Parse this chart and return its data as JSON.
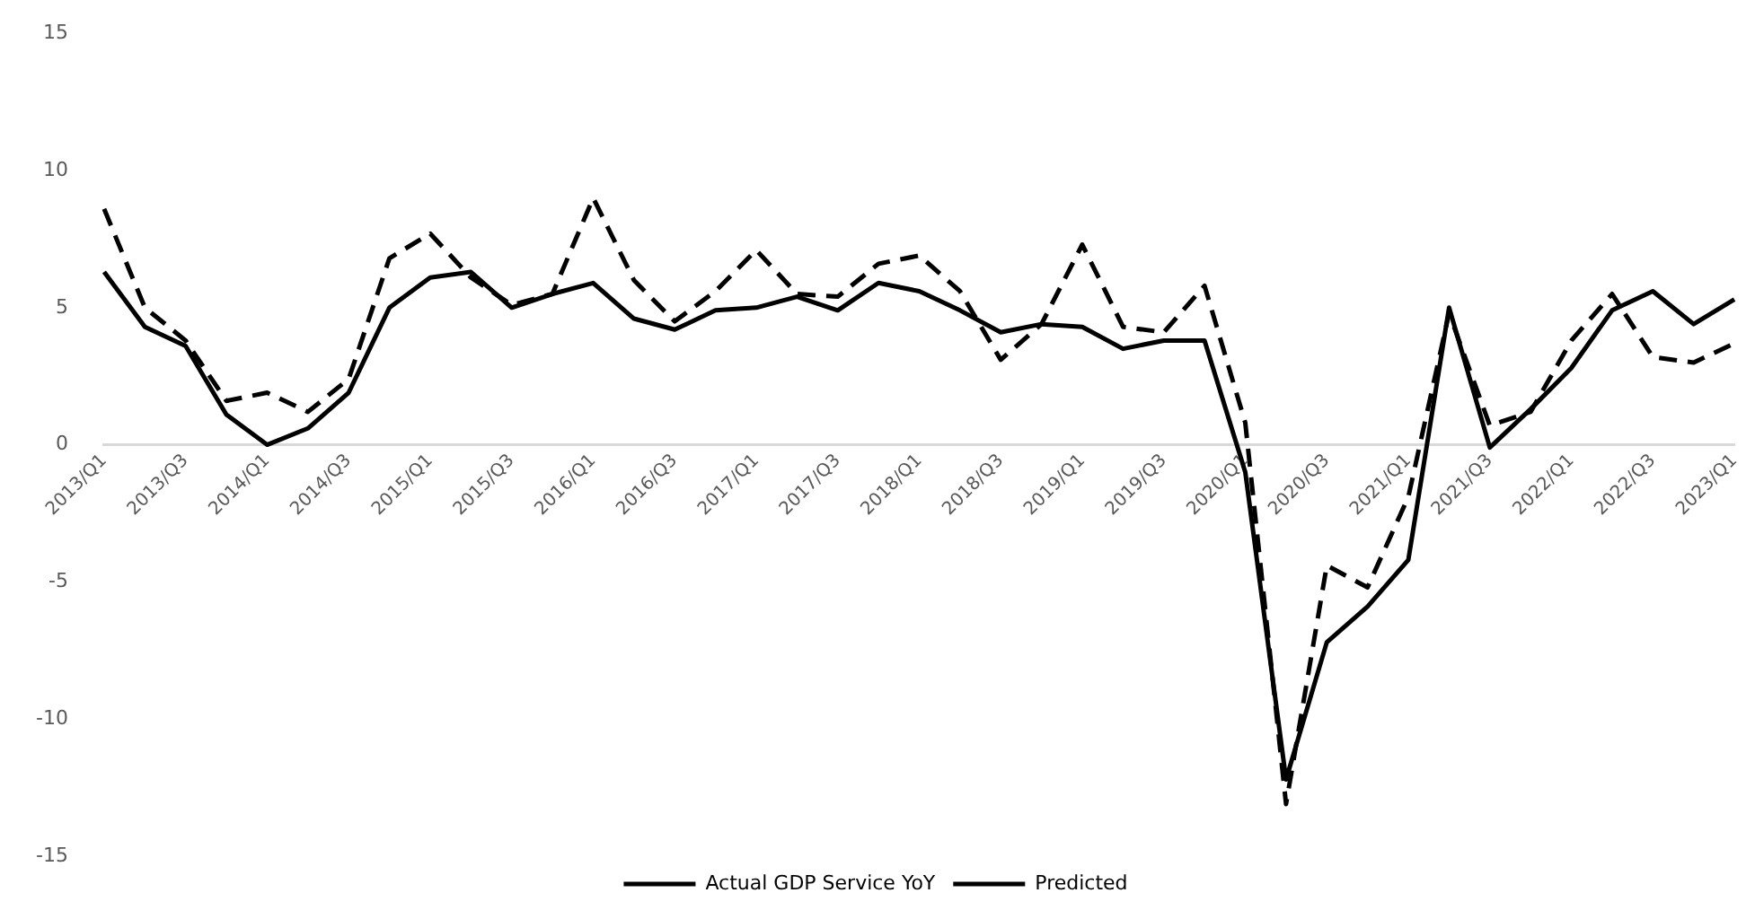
{
  "chart_data": {
    "type": "line",
    "categories": [
      "2013/Q1",
      null,
      "2013/Q3",
      null,
      "2014/Q1",
      null,
      "2014/Q3",
      null,
      "2015/Q1",
      null,
      "2015/Q3",
      null,
      "2016/Q1",
      null,
      "2016/Q3",
      null,
      "2017/Q1",
      null,
      "2017/Q3",
      null,
      "2018/Q1",
      null,
      "2018/Q3",
      null,
      "2019/Q1",
      null,
      "2019/Q3",
      null,
      "2020/Q1",
      null,
      "2020/Q3",
      null,
      "2021/Q1",
      null,
      "2021/Q3",
      null,
      "2022/Q1",
      null,
      "2022/Q3",
      null,
      "2023/Q1"
    ],
    "series": [
      {
        "name": "Actual GDP Service YoY",
        "color": "#000000",
        "line_style": "solid",
        "values": [
          6.3,
          4.3,
          3.6,
          1.1,
          0,
          0.6,
          1.9,
          5.0,
          6.1,
          6.3,
          5.0,
          5.5,
          5.9,
          4.6,
          4.2,
          4.9,
          5.0,
          5.4,
          4.9,
          5.9,
          5.6,
          4.9,
          4.1,
          4.4,
          4.3,
          3.5,
          3.8,
          3.8,
          -1.0,
          -12.2,
          -7.2,
          -5.9,
          -4.2,
          5.0,
          -0.1,
          1.3,
          2.8,
          4.9,
          5.6,
          4.4,
          5.3
        ]
      },
      {
        "name": "Predicted",
        "color": "#000000",
        "line_style": "dashed",
        "values": [
          8.6,
          5.0,
          3.8,
          1.6,
          1.9,
          1.2,
          2.4,
          6.8,
          7.7,
          6.1,
          5.1,
          5.5,
          9.0,
          6.0,
          4.5,
          5.6,
          7.1,
          5.5,
          5.4,
          6.6,
          6.9,
          5.6,
          3.1,
          4.4,
          7.3,
          4.3,
          4.1,
          5.8,
          0.8,
          -13.1,
          -4.4,
          -5.2,
          -1.9,
          4.8,
          0.7,
          1.2,
          3.8,
          5.5,
          3.2,
          3.0,
          3.7
        ]
      }
    ],
    "ylim": [
      -15,
      15
    ],
    "yticks": [
      -15,
      -10,
      -5,
      0,
      5,
      10,
      15
    ],
    "grid": false,
    "legend": "bottom",
    "marker": "none"
  }
}
